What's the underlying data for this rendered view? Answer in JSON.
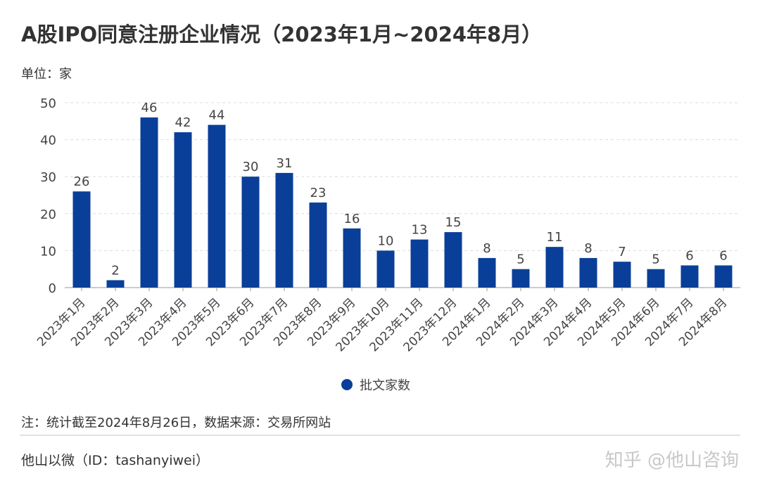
{
  "header": {
    "title": "A股IPO同意注册企业情况（2023年1月~2024年8月）",
    "unit": "单位：家"
  },
  "chart_data": {
    "type": "bar",
    "categories": [
      "2023年1月",
      "2023年2月",
      "2023年3月",
      "2023年4月",
      "2023年5月",
      "2023年6月",
      "2023年7月",
      "2023年8月",
      "2023年9月",
      "2023年10月",
      "2023年11月",
      "2023年12月",
      "2024年1月",
      "2024年2月",
      "2024年3月",
      "2024年4月",
      "2024年5月",
      "2024年6月",
      "2024年7月",
      "2024年8月"
    ],
    "series": [
      {
        "name": "批文家数",
        "values": [
          26,
          2,
          46,
          42,
          44,
          30,
          31,
          23,
          16,
          10,
          13,
          15,
          8,
          5,
          11,
          8,
          7,
          5,
          6,
          6
        ],
        "color": "#0a3f99"
      }
    ],
    "ylim": [
      0,
      50
    ],
    "yticks": [
      0,
      10,
      20,
      30,
      40,
      50
    ],
    "grid": true,
    "data_labels": true,
    "legend_position": "bottom"
  },
  "footer": {
    "note": "注：统计截至2024年8月26日，数据来源：交易所网站",
    "source": "他山以微（ID：tashanyiwei）",
    "watermark": "知乎 @他山咨询",
    "qr_icon": "qr-code-icon"
  }
}
